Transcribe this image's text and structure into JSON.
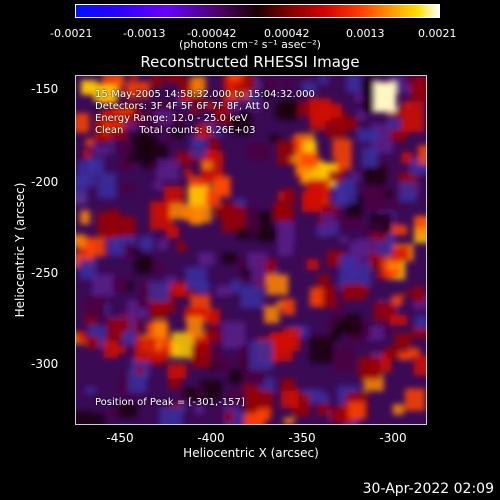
{
  "colorbar": {
    "ticks": [
      "-0.0021",
      "-0.0013",
      "-0.00042",
      "0.00042",
      "0.0013",
      "0.0021"
    ],
    "units": "(photons cm⁻² s⁻¹ asec⁻²)"
  },
  "title": "Reconstructed RHESSI Image",
  "annotations": {
    "time": "15-May-2005 14:58:32.000 to 15:04:32.000",
    "detectors": "Detectors: 3F 4F 5F 6F 7F 8F, Att 0",
    "energy": "Energy Range: 12.0 - 25.0 keV",
    "clean": "Clean     Total counts: 8.26E+03",
    "peak": "Position of Peak = [-301,-157]"
  },
  "axes": {
    "xlabel": "Heliocentric X (arcsec)",
    "ylabel": "Heliocentric Y (arcsec)",
    "xticks": [
      "-450",
      "-400",
      "-350",
      "-300"
    ],
    "yticks": [
      "-150",
      "-200",
      "-250",
      "-300"
    ],
    "xticks_val": [
      -450,
      -400,
      -350,
      -300
    ],
    "yticks_val": [
      -150,
      -200,
      -250,
      -300
    ],
    "xrange": [
      -475,
      -282
    ],
    "yrange": [
      -333,
      -142
    ]
  },
  "footer": {
    "timestamp": "30-Apr-2022 02:09"
  },
  "colors": {
    "background": "#000000",
    "text": "#ffffff",
    "axis": "#cccccc"
  }
}
